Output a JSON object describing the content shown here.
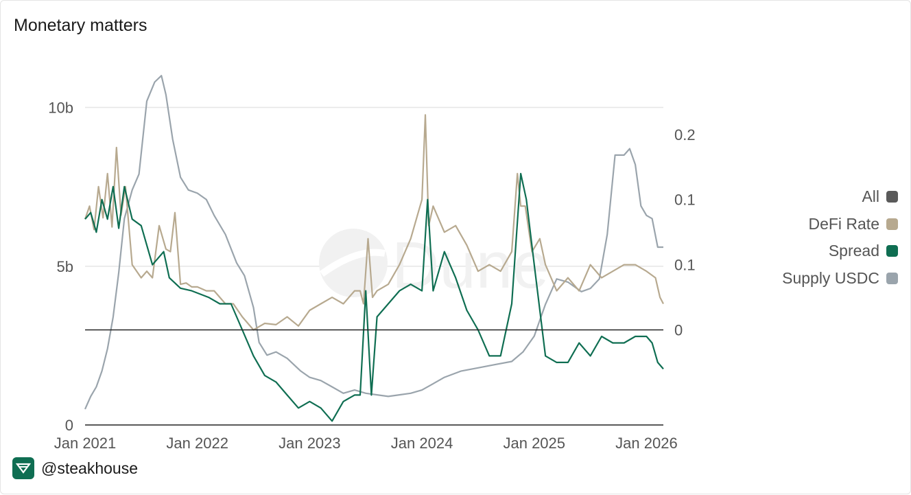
{
  "title": "Monetary matters",
  "footer": {
    "handle": "@steakhouse",
    "logo_icon": "steakhouse-logo-icon"
  },
  "watermark": {
    "text": "Dune"
  },
  "legend": [
    {
      "label": "All",
      "color": "#5a5a5a"
    },
    {
      "label": "DeFi Rate",
      "color": "#b7a98f"
    },
    {
      "label": "Spread",
      "color": "#0f6e52"
    },
    {
      "label": "Supply USDC",
      "color": "#9aa4ac"
    }
  ],
  "chart_data": {
    "type": "line",
    "title": "Monetary matters",
    "x_range": [
      2021.0,
      2026.15
    ],
    "x_ticks": [
      {
        "value": 2021,
        "label": "Jan 2021"
      },
      {
        "value": 2022,
        "label": "Jan 2022"
      },
      {
        "value": 2023,
        "label": "Jan 2023"
      },
      {
        "value": 2024,
        "label": "Jan 2024"
      },
      {
        "value": 2025,
        "label": "Jan 2025"
      },
      {
        "value": 2026,
        "label": "Jan 2026"
      }
    ],
    "left_axis": {
      "range": [
        0,
        11.2
      ],
      "ticks": [
        {
          "value": 0,
          "label": "0"
        },
        {
          "value": 5,
          "label": "5b"
        },
        {
          "value": 10,
          "label": "10b"
        }
      ]
    },
    "right_axis": {
      "range": [
        -0.073,
        0.2
      ],
      "ticks": [
        {
          "value": 0,
          "label": "0"
        },
        {
          "value": 0.05,
          "label": "0.1"
        },
        {
          "value": 0.1,
          "label": "0.1"
        },
        {
          "value": 0.15,
          "label": "0.2"
        }
      ],
      "zero_line": true
    },
    "series": [
      {
        "name": "Supply USDC",
        "axis": "left",
        "color": "#9aa4ac",
        "x": [
          2021.0,
          2021.05,
          2021.1,
          2021.15,
          2021.2,
          2021.25,
          2021.3,
          2021.35,
          2021.42,
          2021.48,
          2021.55,
          2021.62,
          2021.68,
          2021.72,
          2021.78,
          2021.85,
          2021.92,
          2022.0,
          2022.08,
          2022.15,
          2022.25,
          2022.35,
          2022.42,
          2022.5,
          2022.55,
          2022.62,
          2022.7,
          2022.8,
          2022.92,
          2023.0,
          2023.1,
          2023.2,
          2023.3,
          2023.4,
          2023.5,
          2023.6,
          2023.7,
          2023.8,
          2023.9,
          2024.0,
          2024.1,
          2024.2,
          2024.35,
          2024.5,
          2024.65,
          2024.8,
          2024.9,
          2025.0,
          2025.1,
          2025.2,
          2025.3,
          2025.42,
          2025.5,
          2025.58,
          2025.65,
          2025.72,
          2025.8,
          2025.85,
          2025.9,
          2025.95,
          2026.0,
          2026.05,
          2026.1,
          2026.15
        ],
        "y": [
          0.5,
          0.9,
          1.2,
          1.7,
          2.4,
          3.4,
          4.8,
          6.5,
          7.4,
          7.9,
          10.2,
          10.8,
          11.0,
          10.4,
          9.0,
          7.8,
          7.4,
          7.3,
          7.1,
          6.6,
          6.0,
          5.1,
          4.7,
          3.7,
          2.6,
          2.2,
          2.3,
          2.1,
          1.7,
          1.5,
          1.4,
          1.2,
          1.0,
          1.1,
          1.0,
          0.95,
          0.9,
          0.95,
          1.0,
          1.1,
          1.3,
          1.5,
          1.7,
          1.8,
          1.9,
          2.0,
          2.3,
          2.8,
          3.8,
          4.6,
          4.5,
          4.2,
          4.3,
          4.6,
          6.0,
          8.5,
          8.5,
          8.7,
          8.2,
          6.9,
          6.6,
          6.5,
          5.6,
          5.6
        ]
      },
      {
        "name": "DeFi Rate",
        "axis": "right",
        "color": "#b7a98f",
        "x": [
          2021.0,
          2021.04,
          2021.08,
          2021.12,
          2021.16,
          2021.2,
          2021.24,
          2021.28,
          2021.32,
          2021.36,
          2021.42,
          2021.5,
          2021.55,
          2021.6,
          2021.66,
          2021.72,
          2021.76,
          2021.8,
          2021.85,
          2021.9,
          2021.95,
          2022.0,
          2022.08,
          2022.15,
          2022.25,
          2022.32,
          2022.4,
          2022.5,
          2022.6,
          2022.7,
          2022.8,
          2022.9,
          2023.0,
          2023.1,
          2023.2,
          2023.3,
          2023.4,
          2023.45,
          2023.48,
          2023.52,
          2023.56,
          2023.6,
          2023.7,
          2023.8,
          2023.9,
          2024.0,
          2024.03,
          2024.06,
          2024.1,
          2024.2,
          2024.3,
          2024.4,
          2024.5,
          2024.6,
          2024.7,
          2024.8,
          2024.85,
          2024.88,
          2024.92,
          2024.98,
          2025.05,
          2025.1,
          2025.2,
          2025.3,
          2025.4,
          2025.5,
          2025.6,
          2025.7,
          2025.8,
          2025.9,
          2026.0,
          2026.08,
          2026.12,
          2026.15
        ],
        "y": [
          0.085,
          0.095,
          0.077,
          0.11,
          0.086,
          0.12,
          0.079,
          0.14,
          0.088,
          0.11,
          0.05,
          0.04,
          0.045,
          0.04,
          0.08,
          0.062,
          0.06,
          0.09,
          0.035,
          0.036,
          0.033,
          0.033,
          0.03,
          0.03,
          0.02,
          0.02,
          0.01,
          0.0,
          0.005,
          0.004,
          0.01,
          0.003,
          0.015,
          0.02,
          0.025,
          0.02,
          0.03,
          0.03,
          0.02,
          0.07,
          0.025,
          0.03,
          0.035,
          0.05,
          0.07,
          0.1,
          0.165,
          0.08,
          0.095,
          0.075,
          0.08,
          0.065,
          0.045,
          0.05,
          0.045,
          0.06,
          0.12,
          0.095,
          0.095,
          0.06,
          0.07,
          0.05,
          0.03,
          0.04,
          0.03,
          0.05,
          0.04,
          0.045,
          0.05,
          0.05,
          0.045,
          0.04,
          0.025,
          0.02
        ]
      },
      {
        "name": "Spread",
        "axis": "right",
        "color": "#0f6e52",
        "x": [
          2021.0,
          2021.05,
          2021.1,
          2021.15,
          2021.2,
          2021.25,
          2021.3,
          2021.35,
          2021.42,
          2021.5,
          2021.6,
          2021.7,
          2021.75,
          2021.85,
          2021.95,
          2022.1,
          2022.2,
          2022.3,
          2022.35,
          2022.4,
          2022.5,
          2022.6,
          2022.7,
          2022.8,
          2022.9,
          2023.0,
          2023.1,
          2023.2,
          2023.3,
          2023.4,
          2023.45,
          2023.5,
          2023.55,
          2023.6,
          2023.7,
          2023.8,
          2023.9,
          2024.0,
          2024.05,
          2024.1,
          2024.2,
          2024.3,
          2024.4,
          2024.5,
          2024.6,
          2024.7,
          2024.8,
          2024.88,
          2024.93,
          2025.0,
          2025.1,
          2025.2,
          2025.3,
          2025.4,
          2025.5,
          2025.6,
          2025.7,
          2025.8,
          2025.9,
          2026.0,
          2026.05,
          2026.1,
          2026.15
        ],
        "y": [
          0.085,
          0.09,
          0.075,
          0.1,
          0.085,
          0.11,
          0.078,
          0.11,
          0.085,
          0.08,
          0.05,
          0.06,
          0.04,
          0.032,
          0.03,
          0.025,
          0.02,
          0.02,
          0.01,
          0.0,
          -0.02,
          -0.035,
          -0.04,
          -0.05,
          -0.06,
          -0.055,
          -0.06,
          -0.07,
          -0.055,
          -0.05,
          -0.05,
          0.03,
          -0.05,
          0.01,
          0.02,
          0.03,
          0.035,
          0.03,
          0.1,
          0.03,
          0.06,
          0.04,
          0.015,
          0.0,
          -0.02,
          -0.02,
          0.02,
          0.12,
          0.1,
          0.05,
          -0.02,
          -0.025,
          -0.025,
          -0.01,
          -0.02,
          -0.005,
          -0.01,
          -0.01,
          -0.005,
          -0.005,
          -0.01,
          -0.025,
          -0.03
        ]
      }
    ]
  }
}
